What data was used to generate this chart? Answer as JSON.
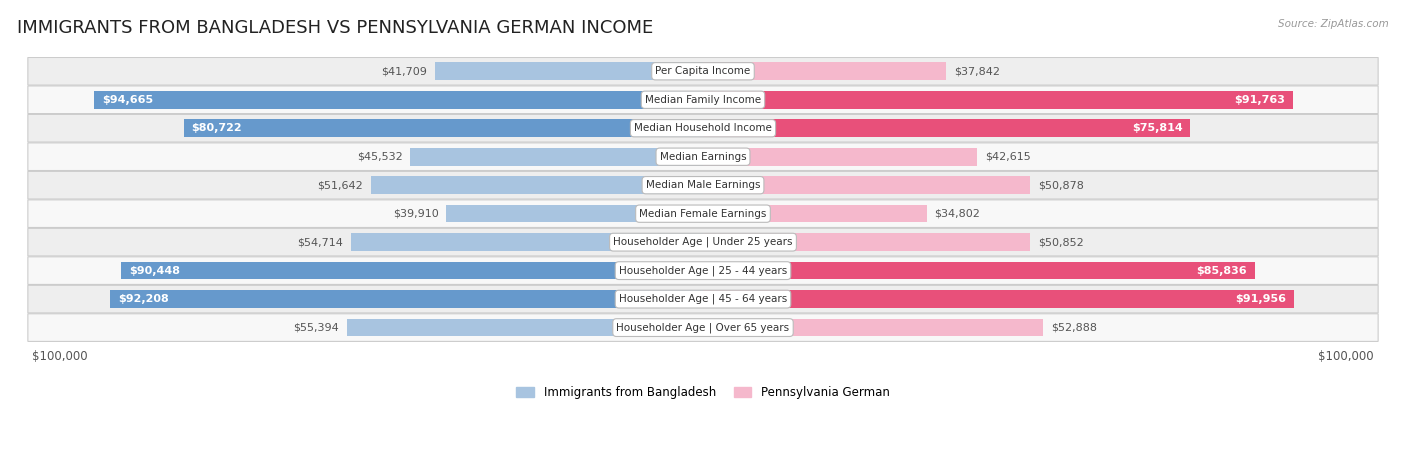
{
  "title": "IMMIGRANTS FROM BANGLADESH VS PENNSYLVANIA GERMAN INCOME",
  "source": "Source: ZipAtlas.com",
  "categories": [
    "Per Capita Income",
    "Median Family Income",
    "Median Household Income",
    "Median Earnings",
    "Median Male Earnings",
    "Median Female Earnings",
    "Householder Age | Under 25 years",
    "Householder Age | 25 - 44 years",
    "Householder Age | 45 - 64 years",
    "Householder Age | Over 65 years"
  ],
  "bangladesh_values": [
    41709,
    94665,
    80722,
    45532,
    51642,
    39910,
    54714,
    90448,
    92208,
    55394
  ],
  "pennsylvania_values": [
    37842,
    91763,
    75814,
    42615,
    50878,
    34802,
    50852,
    85836,
    91956,
    52888
  ],
  "bangladesh_labels": [
    "$41,709",
    "$94,665",
    "$80,722",
    "$45,532",
    "$51,642",
    "$39,910",
    "$54,714",
    "$90,448",
    "$92,208",
    "$55,394"
  ],
  "pennsylvania_labels": [
    "$37,842",
    "$91,763",
    "$75,814",
    "$42,615",
    "$50,878",
    "$34,802",
    "$50,852",
    "$85,836",
    "$91,956",
    "$52,888"
  ],
  "max_value": 100000,
  "bangladesh_color_light": "#a8c4e0",
  "bangladesh_color_dark": "#6699cc",
  "pennsylvania_color_light": "#f5b8cc",
  "pennsylvania_color_dark": "#e8507a",
  "label_color_dark": "#555555",
  "label_color_white": "#ffffff",
  "background_color": "#ffffff",
  "row_bg_odd": "#eeeeee",
  "row_bg_even": "#f8f8f8",
  "legend_bangladesh": "Immigrants from Bangladesh",
  "legend_pennsylvania": "Pennsylvania German",
  "title_fontsize": 13,
  "inside_label_threshold": 0.6,
  "bar_height": 0.62
}
